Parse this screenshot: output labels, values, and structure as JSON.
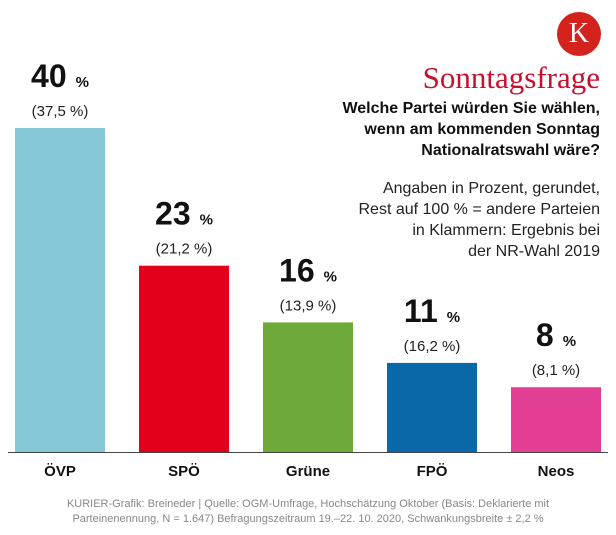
{
  "header": {
    "logo_letter": "K",
    "title": "Sonntagsfrage",
    "question_lines": [
      "Welche Partei würden Sie wählen,",
      "wenn am kommenden Sonntag",
      "Nationalratswahl wäre?"
    ],
    "note_lines": [
      "Angaben in Prozent, gerundet,",
      "Rest auf 100 % = andere Parteien",
      "in Klammern: Ergebnis bei",
      "der NR-Wahl 2019"
    ]
  },
  "chart_data": {
    "type": "bar",
    "title": "Sonntagsfrage",
    "categories": [
      "ÖVP",
      "SPÖ",
      "Grüne",
      "FPÖ",
      "Neos"
    ],
    "values": [
      40,
      23,
      16,
      11,
      8
    ],
    "value_labels": [
      "40",
      "23",
      "16",
      "11",
      "8"
    ],
    "unit": "%",
    "previous_labels": [
      "(37,5 %)",
      "(21,2 %)",
      "(13,9 %)",
      "(16,2 %)",
      "(8,1 %)"
    ],
    "colors": [
      "#87c8d8",
      "#e3001b",
      "#6ea93a",
      "#0b68a8",
      "#e23f94"
    ],
    "ylim": [
      0,
      40
    ],
    "xlabel": "",
    "ylabel": ""
  },
  "footer": {
    "source_lines": [
      "KURIER-Grafik: Breineder | Quelle: OGM-Umfrage, Hochschätzung Oktober (Basis: Deklarierte mit",
      "Parteinenennung, N = 1.647) Befragungszeitraum 19.–22. 10. 2020, Schwankungsbreite ± 2,2 %"
    ]
  }
}
